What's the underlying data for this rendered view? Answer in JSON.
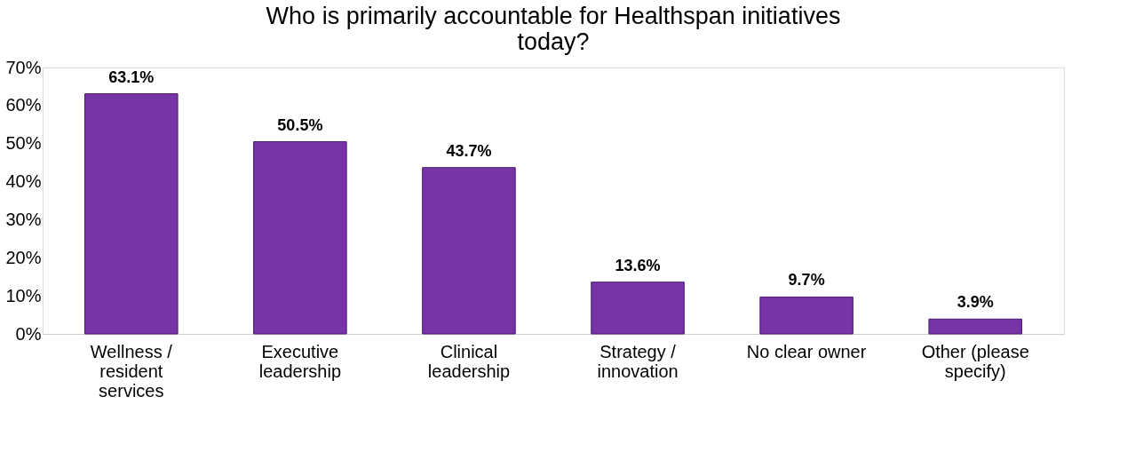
{
  "chart_data": {
    "type": "bar",
    "title": "Who is primarily accountable for Healthspan initiatives today?",
    "categories": [
      "Wellness / resident services",
      "Executive leadership",
      "Clinical leadership",
      "Strategy / innovation",
      "No clear owner",
      "Other (please specify)"
    ],
    "values": [
      63.1,
      50.5,
      43.7,
      13.6,
      9.7,
      3.9
    ],
    "value_labels": [
      "63.1%",
      "50.5%",
      "43.7%",
      "13.6%",
      "9.7%",
      "3.9%"
    ],
    "color": "#7634a6",
    "ylim": [
      0,
      70
    ],
    "yticks": [
      {
        "value": 0,
        "label": "0%"
      },
      {
        "value": 10,
        "label": "10%"
      },
      {
        "value": 20,
        "label": "20%"
      },
      {
        "value": 30,
        "label": "30%"
      },
      {
        "value": 40,
        "label": "40%"
      },
      {
        "value": 50,
        "label": "50%"
      },
      {
        "value": 60,
        "label": "60%"
      },
      {
        "value": 70,
        "label": "70%"
      }
    ],
    "grid": false
  }
}
